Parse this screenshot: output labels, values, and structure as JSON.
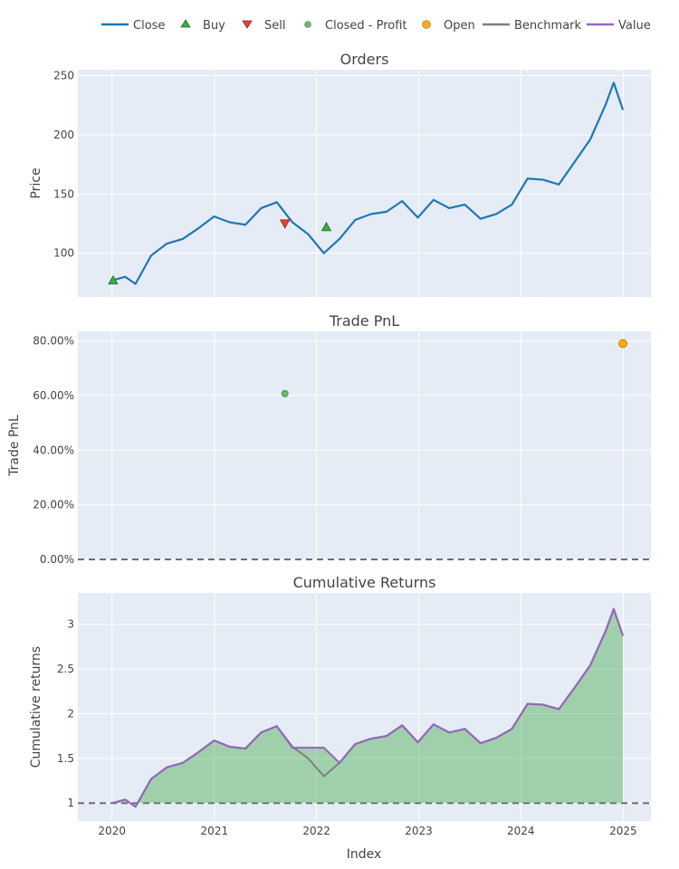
{
  "chart_data": {
    "x": [
      "2020-01-02",
      "2020-02-17",
      "2020-03-25",
      "2020-05-20",
      "2020-07-15",
      "2020-09-10",
      "2020-11-05",
      "2020-12-31",
      "2021-02-25",
      "2021-04-22",
      "2021-06-17",
      "2021-08-12",
      "2021-10-07",
      "2021-12-02",
      "2022-01-27",
      "2022-03-24",
      "2022-05-19",
      "2022-07-14",
      "2022-09-08",
      "2022-11-03",
      "2022-12-29",
      "2023-02-23",
      "2023-04-20",
      "2023-06-15",
      "2023-08-10",
      "2023-10-05",
      "2023-11-30",
      "2024-01-25",
      "2024-03-21",
      "2024-05-16",
      "2024-07-11",
      "2024-09-05",
      "2024-10-31",
      "2024-11-28",
      "2024-12-31"
    ],
    "legend": [
      {
        "name": "Close",
        "kind": "line",
        "color": "#1f77b4"
      },
      {
        "name": "Buy",
        "kind": "triangle-up",
        "color": "#37b13f"
      },
      {
        "name": "Sell",
        "kind": "triangle-down",
        "color": "#ea4335"
      },
      {
        "name": "Closed - Profit",
        "kind": "circle",
        "color": "#66bb6a"
      },
      {
        "name": "Open",
        "kind": "circle",
        "color": "#ffaa00"
      },
      {
        "name": "Benchmark",
        "kind": "line",
        "color": "#7f7f7f"
      },
      {
        "name": "Value",
        "kind": "line",
        "color": "#9467bd"
      }
    ],
    "xticks": [
      "2020",
      "2021",
      "2022",
      "2023",
      "2024",
      "2025"
    ],
    "xlabel": "Index",
    "subplots": [
      {
        "title": "Orders",
        "ylabel": "Price",
        "ylim": [
          63,
          255
        ],
        "yticks": [
          "100",
          "150",
          "200",
          "250"
        ],
        "ytick_values": [
          100,
          150,
          200,
          250
        ],
        "series": [
          {
            "name": "Close",
            "type": "line",
            "values": [
              77,
              80,
              74,
              98,
              108,
              112,
              121,
              131,
              126,
              124,
              138,
              143,
              126,
              116,
              100,
              112,
              128,
              133,
              135,
              144,
              130,
              145,
              138,
              141,
              129,
              133,
              141,
              163,
              162,
              158,
              177,
              196,
              226,
              244,
              221
            ]
          },
          {
            "name": "Buy",
            "type": "markers",
            "points": [
              {
                "x": "2020-01-05",
                "y": 77
              },
              {
                "x": "2022-02-05",
                "y": 122
              }
            ]
          },
          {
            "name": "Sell",
            "type": "markers",
            "points": [
              {
                "x": "2021-09-10",
                "y": 125
              }
            ]
          }
        ]
      },
      {
        "title": "Trade PnL",
        "ylabel": "Trade PnL",
        "ylim": [
          0,
          0.835
        ],
        "yticks": [
          "0.00%",
          "20.00%",
          "40.00%",
          "60.00%",
          "80.00%"
        ],
        "ytick_values": [
          0,
          0.2,
          0.4,
          0.6,
          0.8
        ],
        "baseline": 0,
        "series": [
          {
            "name": "Closed - Profit",
            "type": "markers",
            "points": [
              {
                "x": "2021-09-10",
                "y": 0.607
              }
            ]
          },
          {
            "name": "Open",
            "type": "markers",
            "points": [
              {
                "x": "2024-12-31",
                "y": 0.79
              }
            ]
          }
        ]
      },
      {
        "title": "Cumulative Returns",
        "ylabel": "Cumulative returns",
        "ylim": [
          0.8,
          3.35
        ],
        "yticks": [
          "1",
          "1.5",
          "2",
          "2.5",
          "3"
        ],
        "ytick_values": [
          1,
          1.5,
          2,
          2.5,
          3
        ],
        "baseline": 1,
        "series": [
          {
            "name": "Benchmark",
            "type": "line",
            "values": [
              1.0,
              1.04,
              0.96,
              1.27,
              1.4,
              1.45,
              1.57,
              1.7,
              1.63,
              1.61,
              1.79,
              1.86,
              1.63,
              1.5,
              1.3,
              1.45,
              1.66,
              1.72,
              1.75,
              1.87,
              1.68,
              1.88,
              1.79,
              1.83,
              1.67,
              1.73,
              1.83,
              2.11,
              2.1,
              2.05,
              2.29,
              2.54,
              2.93,
              3.17,
              2.87
            ]
          },
          {
            "name": "Value",
            "type": "line",
            "values": [
              1.0,
              1.04,
              0.96,
              1.27,
              1.4,
              1.45,
              1.57,
              1.7,
              1.63,
              1.61,
              1.79,
              1.86,
              1.62,
              1.62,
              1.62,
              1.45,
              1.66,
              1.72,
              1.75,
              1.87,
              1.68,
              1.88,
              1.79,
              1.83,
              1.67,
              1.73,
              1.83,
              2.11,
              2.1,
              2.05,
              2.29,
              2.54,
              2.93,
              3.17,
              2.87
            ]
          }
        ]
      }
    ]
  }
}
